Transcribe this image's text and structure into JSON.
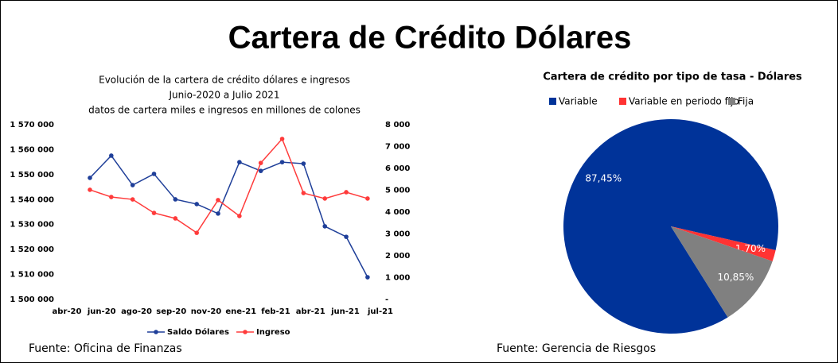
{
  "title": "Cartera de Crédito Dólares",
  "chart_data": [
    {
      "type": "line",
      "title": [
        "Evolución de la cartera de crédito dólares e ingresos",
        "Junio-2020 a Julio 2021",
        "datos de cartera miles e ingresos en millones de colones"
      ],
      "x": [
        0,
        1,
        2,
        3,
        4,
        5,
        6,
        7,
        8,
        9,
        10,
        11,
        12,
        13
      ],
      "xlim": [
        -1.08,
        13.6
      ],
      "xticks": [
        {
          "value": -1.08,
          "label": "abr-20"
        },
        {
          "value": 0.55,
          "label": "jun-20"
        },
        {
          "value": 2.18,
          "label": "ago-20"
        },
        {
          "value": 3.81,
          "label": "sep-20"
        },
        {
          "value": 5.44,
          "label": "nov-20"
        },
        {
          "value": 7.07,
          "label": "ene-21"
        },
        {
          "value": 8.7,
          "label": "feb-21"
        },
        {
          "value": 10.33,
          "label": "abr-21"
        },
        {
          "value": 11.96,
          "label": "jun-21"
        },
        {
          "value": 13.6,
          "label": "jul-21"
        }
      ],
      "ylim": [
        1500000,
        1570000
      ],
      "yticks": [
        {
          "value": 1500000,
          "label": "1 500 000"
        },
        {
          "value": 1510000,
          "label": "1 510 000"
        },
        {
          "value": 1520000,
          "label": "1 520 000"
        },
        {
          "value": 1530000,
          "label": "1 530 000"
        },
        {
          "value": 1540000,
          "label": "1 540 000"
        },
        {
          "value": 1550000,
          "label": "1 550 000"
        },
        {
          "value": 1560000,
          "label": "1 560 000"
        },
        {
          "value": 1570000,
          "label": "1 570 000"
        }
      ],
      "y2lim": [
        0,
        8000
      ],
      "y2ticks": [
        {
          "value": 0,
          "label": "-"
        },
        {
          "value": 1000,
          "label": "1 000"
        },
        {
          "value": 2000,
          "label": "2 000"
        },
        {
          "value": 3000,
          "label": "3 000"
        },
        {
          "value": 4000,
          "label": "4 000"
        },
        {
          "value": 5000,
          "label": "5 000"
        },
        {
          "value": 6000,
          "label": "6 000"
        },
        {
          "value": 7000,
          "label": "7 000"
        },
        {
          "value": 8000,
          "label": "8 000"
        }
      ],
      "series": [
        {
          "name": "Saldo Dólares",
          "color": "#1f3f99",
          "values": [
            1548700,
            1557600,
            1545800,
            1550300,
            1540100,
            1538200,
            1534400,
            1555000,
            1551500,
            1555000,
            1554400,
            1529300,
            1525100,
            1508900
          ]
        },
        {
          "name": "Ingreso",
          "color": "#ff3b3b",
          "axis": "y2",
          "values": [
            5020,
            4690,
            4580,
            3960,
            3710,
            3050,
            4550,
            3820,
            6250,
            7350,
            4870,
            4620,
            4910,
            4620
          ]
        }
      ],
      "legend": "bottom",
      "source": "Fuente: Oficina de Finanzas"
    },
    {
      "type": "pie",
      "title": "Cartera de crédito por tipo de tasa - Dólares",
      "categories": [
        "Variable",
        "Variable en periodo fijo",
        "Fija"
      ],
      "values": [
        87.45,
        1.7,
        10.85
      ],
      "value_labels": [
        "87,45%",
        "1,70%",
        "10,85%"
      ],
      "colors": [
        "#003399",
        "#ff3333",
        "#808080"
      ],
      "start_angle": 148,
      "legend": "top",
      "source": "Fuente: Gerencia de Riesgos"
    }
  ]
}
